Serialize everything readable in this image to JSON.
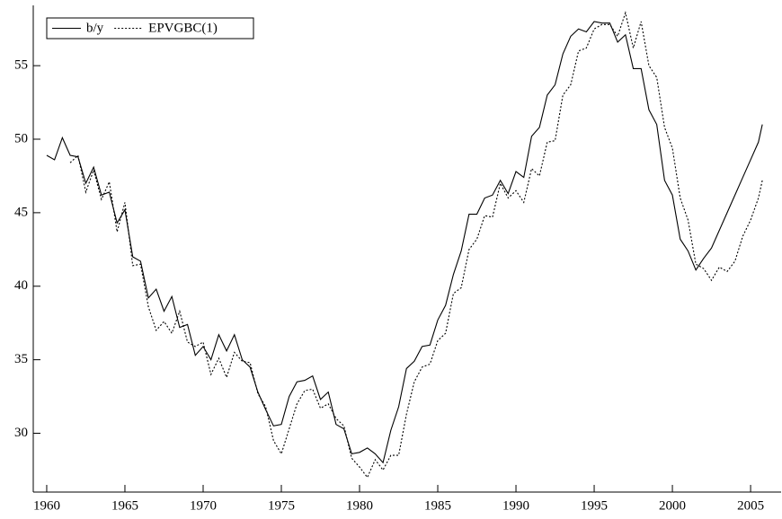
{
  "chart_data": {
    "type": "line",
    "x": [
      1960,
      1960.5,
      1961,
      1961.5,
      1962,
      1962.5,
      1963,
      1963.5,
      1964,
      1964.5,
      1965,
      1965.5,
      1966,
      1966.5,
      1967,
      1967.5,
      1968,
      1968.5,
      1969,
      1969.5,
      1970,
      1970.5,
      1971,
      1971.5,
      1972,
      1972.5,
      1973,
      1973.5,
      1974,
      1974.5,
      1975,
      1975.5,
      1976,
      1976.5,
      1977,
      1977.5,
      1978,
      1978.5,
      1979,
      1979.5,
      1980,
      1980.5,
      1981,
      1981.5,
      1982,
      1982.5,
      1983,
      1983.5,
      1984,
      1984.5,
      1985,
      1985.5,
      1986,
      1986.5,
      1987,
      1987.5,
      1988,
      1988.5,
      1989,
      1989.5,
      1990,
      1990.5,
      1991,
      1991.5,
      1992,
      1992.5,
      1993,
      1993.5,
      1994,
      1994.5,
      1995,
      1995.5,
      1996,
      1996.5,
      1997,
      1997.5,
      1998,
      1998.5,
      1999,
      1999.5,
      2000,
      2000.5,
      2001,
      2001.5,
      2002,
      2002.5,
      2003,
      2003.5,
      2004,
      2004.5,
      2005,
      2005.5,
      2005.75
    ],
    "series": [
      {
        "name": "b/y",
        "color": "#000000",
        "linestyle": "solid",
        "values": [
          48.9,
          48.6,
          50.1,
          48.9,
          48.8,
          47.0,
          48.1,
          46.2,
          46.4,
          44.3,
          45.2,
          42.0,
          41.7,
          39.2,
          39.8,
          38.3,
          39.3,
          37.2,
          37.4,
          35.3,
          35.9,
          35.0,
          36.7,
          35.6,
          36.7,
          35.0,
          34.5,
          32.8,
          31.6,
          30.5,
          30.6,
          32.5,
          33.5,
          33.6,
          33.9,
          32.3,
          32.8,
          30.6,
          30.3,
          28.6,
          28.7,
          29.0,
          28.6,
          28.0,
          30.2,
          31.8,
          34.4,
          34.9,
          35.9,
          36.0,
          37.7,
          38.7,
          40.8,
          42.4,
          44.9,
          44.9,
          46.0,
          46.2,
          47.2,
          46.3,
          47.8,
          47.4,
          50.2,
          50.8,
          53.0,
          53.7,
          55.8,
          57.0,
          57.5,
          57.3,
          58.0,
          57.9,
          57.9,
          56.6,
          57.1,
          54.8,
          54.8,
          52.0,
          51.0,
          47.2,
          46.2,
          43.2,
          42.4,
          41.1,
          41.9,
          42.6,
          43.8,
          45.0,
          46.2,
          47.4,
          48.6,
          49.8,
          51.0
        ]
      },
      {
        "name": "EPVGBC(1)",
        "color": "#000000",
        "linestyle": "dotted",
        "values": [
          null,
          null,
          null,
          48.4,
          48.9,
          46.4,
          47.9,
          45.9,
          47.1,
          43.7,
          45.7,
          41.4,
          41.5,
          38.6,
          37.0,
          37.6,
          36.8,
          38.3,
          36.2,
          35.9,
          36.2,
          34.0,
          35.1,
          33.8,
          35.5,
          34.9,
          34.8,
          32.7,
          31.8,
          29.5,
          28.6,
          30.3,
          32.0,
          32.9,
          33.0,
          31.7,
          32.0,
          31.0,
          30.5,
          28.3,
          27.7,
          27.0,
          28.2,
          27.5,
          28.5,
          28.5,
          31.3,
          33.5,
          34.5,
          34.7,
          36.3,
          36.8,
          39.5,
          39.9,
          42.5,
          43.2,
          44.8,
          44.7,
          47.0,
          46.0,
          46.5,
          45.7,
          48.0,
          47.5,
          49.8,
          49.9,
          53.0,
          53.7,
          56.0,
          56.2,
          57.5,
          57.8,
          57.8,
          57.0,
          58.6,
          56.2,
          58.0,
          55.0,
          54.2,
          50.8,
          49.4,
          46.0,
          44.5,
          41.5,
          41.2,
          40.4,
          41.3,
          41.0,
          41.7,
          43.4,
          44.5,
          46.0,
          47.2
        ]
      }
    ],
    "xlim": [
      1959.14,
      2006.95
    ],
    "ylim": [
      26.0,
      59.1
    ],
    "xticks": [
      1960,
      1965,
      1970,
      1975,
      1980,
      1985,
      1990,
      1995,
      2000,
      2005
    ],
    "yticks": [
      30,
      35,
      40,
      45,
      50,
      55
    ],
    "legend": "upper left"
  }
}
